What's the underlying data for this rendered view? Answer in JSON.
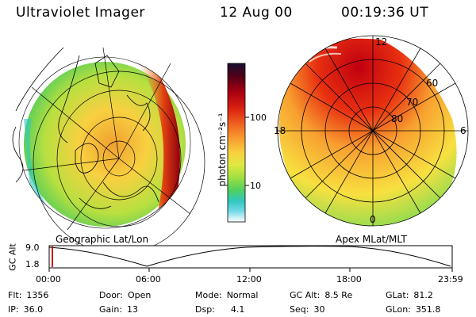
{
  "header": {
    "title": "Ultraviolet Imager",
    "date": "12 Aug 00",
    "time": "00:19:36 UT"
  },
  "left_panel": {
    "caption": "Geographic Lat/Lon"
  },
  "right_panel": {
    "caption": "Apex MLat/MLT",
    "mlt_labels": [
      "12",
      "18",
      "6",
      "0"
    ],
    "lat_labels": [
      "60",
      "70",
      "80"
    ]
  },
  "colorbar": {
    "label": "photon cm⁻²s⁻¹",
    "ticks": [
      "100",
      "10"
    ],
    "colors": [
      "#1a1030",
      "#500018",
      "#a80010",
      "#d82010",
      "#f06020",
      "#f8a030",
      "#f8d040",
      "#e0e840",
      "#a0e040",
      "#50d060",
      "#30c8c0",
      "#70d8e8",
      "#c8f0f0",
      "#ffffff"
    ]
  },
  "altitude_plot": {
    "ylabel": "GC Alt",
    "yticks": [
      "9.0",
      "1.8"
    ],
    "xticks": [
      "00:00",
      "06:00",
      "12:00",
      "18:00",
      "23:59"
    ]
  },
  "status": {
    "flt_label": "Flt:",
    "flt": "1356",
    "ip_label": "IP:",
    "ip": "36.0",
    "door_label": "Door:",
    "door": "Open",
    "gain_label": "Gain:",
    "gain": "13",
    "mode_label": "Mode:",
    "mode": "Normal",
    "dsp_label": "Dsp:",
    "dsp": "4.1",
    "gcalt_label": "GC Alt:",
    "gcalt": "8.5 Re",
    "seq_label": "Seq:",
    "seq": "30",
    "glat_label": "GLat:",
    "glat": "81.2",
    "glon_label": "GLon:",
    "glon": "351.8"
  }
}
